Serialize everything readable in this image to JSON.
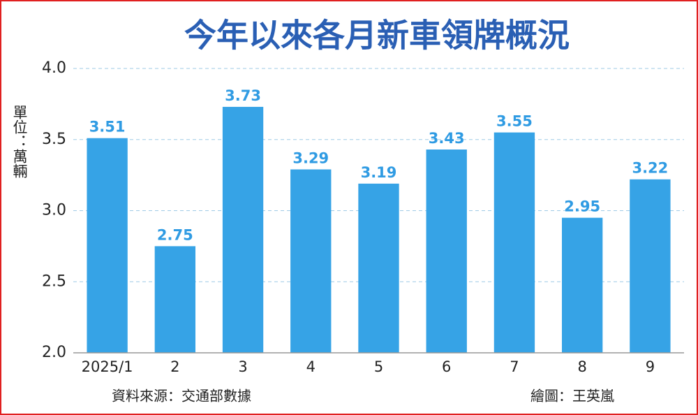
{
  "chart_data": {
    "type": "bar",
    "title": "今年以來各月新車領牌概況",
    "y_label": "單位：萬輛",
    "source": "資料來源：交通部數據",
    "credit": "繪圖：王英嵐",
    "categories": [
      "2025/1",
      "2",
      "3",
      "4",
      "5",
      "6",
      "7",
      "8",
      "9"
    ],
    "values": [
      3.51,
      2.75,
      3.73,
      3.29,
      3.19,
      3.43,
      3.55,
      2.95,
      3.22
    ],
    "color": "#36a3e6",
    "ylim": [
      2.0,
      4.0
    ],
    "yticks": [
      {
        "value": 2.0,
        "label": "2.0"
      },
      2.5,
      {
        "value": 3.0,
        "label": "3.0"
      },
      3.5,
      {
        "value": 4.0,
        "label": "4.0"
      }
    ],
    "grid": true
  }
}
